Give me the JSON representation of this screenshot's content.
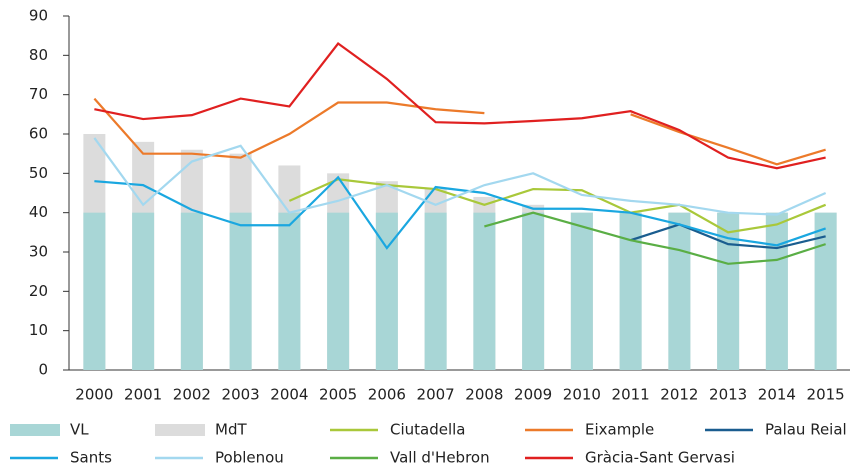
{
  "chart_data": {
    "type": "combo",
    "categories": [
      "2000",
      "2001",
      "2002",
      "2003",
      "2004",
      "2005",
      "2006",
      "2007",
      "2008",
      "2009",
      "2010",
      "2011",
      "2012",
      "2013",
      "2014",
      "2015"
    ],
    "ylim": [
      0,
      90
    ],
    "yticks": [
      0,
      10,
      20,
      30,
      40,
      50,
      60,
      70,
      80,
      90
    ],
    "series": [
      {
        "name": "MdT",
        "type": "bar",
        "color": "#dcdcdc",
        "values": [
          60,
          58,
          56,
          55,
          52,
          50,
          48,
          46,
          44,
          42,
          40,
          40,
          40,
          40,
          40,
          40
        ]
      },
      {
        "name": "VL",
        "type": "bar",
        "color": "#a8d6d6",
        "values": [
          40,
          40,
          40,
          40,
          40,
          40,
          40,
          40,
          40,
          40,
          40,
          40,
          40,
          40,
          40,
          40
        ]
      },
      {
        "name": "Ciutadella",
        "type": "line",
        "color": "#a9c83a",
        "values": [
          null,
          null,
          null,
          null,
          43,
          48.5,
          47,
          46,
          42,
          46,
          45.7,
          40,
          42,
          35,
          37,
          42
        ]
      },
      {
        "name": "Eixample",
        "type": "line",
        "color": "#ec7a2a",
        "values": [
          69,
          55,
          55,
          54,
          60,
          68,
          68,
          66.3,
          65.3,
          null,
          null,
          65,
          60.5,
          56.5,
          52.3,
          56
        ]
      },
      {
        "name": "Palau Reial",
        "type": "line",
        "color": "#1a5d8f",
        "values": [
          null,
          null,
          null,
          null,
          null,
          null,
          null,
          null,
          null,
          null,
          null,
          33,
          37,
          32,
          31,
          34
        ]
      },
      {
        "name": "Sants",
        "type": "line",
        "color": "#1aa7e0",
        "values": [
          48,
          47,
          40.7,
          36.8,
          36.8,
          49,
          31,
          46.5,
          45,
          41,
          41,
          40,
          37,
          33.5,
          31.7,
          36
        ]
      },
      {
        "name": "Poblenou",
        "type": "line",
        "color": "#a3d8ef",
        "values": [
          59,
          42,
          53,
          57,
          40,
          43,
          47,
          42,
          47,
          50,
          44.5,
          43,
          42,
          40,
          39.5,
          45
        ]
      },
      {
        "name": "Vall d'Hebron",
        "type": "line",
        "color": "#5aae45",
        "values": [
          null,
          null,
          null,
          null,
          null,
          null,
          null,
          null,
          36.5,
          40,
          36.5,
          33,
          30.5,
          27,
          28,
          32
        ]
      },
      {
        "name": "Gràcia-Sant Gervasi",
        "type": "line",
        "color": "#e02020",
        "values": [
          66.3,
          63.8,
          64.8,
          69,
          67,
          83,
          74,
          63,
          62.7,
          63.3,
          64,
          65.8,
          61,
          54,
          51.3,
          54
        ]
      }
    ]
  }
}
